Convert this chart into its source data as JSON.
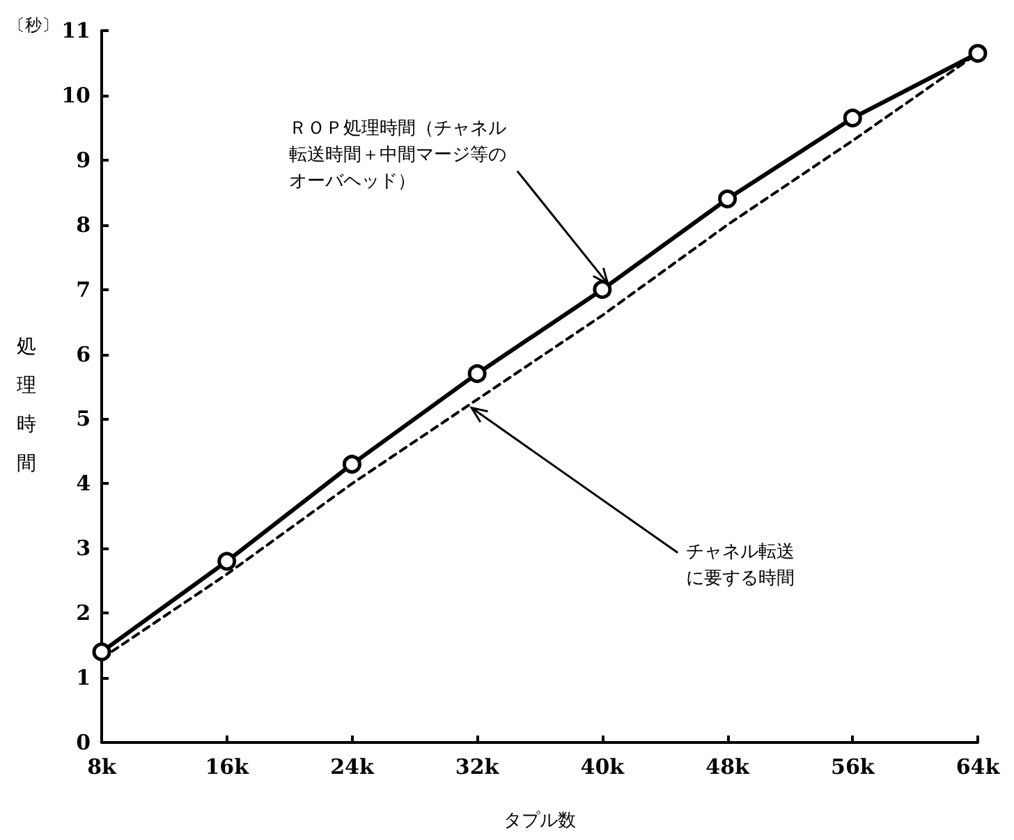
{
  "chart_data": {
    "type": "line",
    "categories": [
      "8k",
      "16k",
      "24k",
      "32k",
      "40k",
      "48k",
      "56k",
      "64k"
    ],
    "series": [
      {
        "color": "#000000",
        "marker": "circle",
        "line_style": "solid",
        "values": [
          1.4,
          2.8,
          4.3,
          5.7,
          7.0,
          8.4,
          9.65,
          10.65
        ]
      },
      {
        "color": "#000000",
        "marker": "none",
        "line_style": "dashed",
        "values": [
          1.3,
          2.6,
          4.0,
          5.3,
          6.6,
          8.0,
          9.3,
          10.65
        ]
      }
    ],
    "xlabel": "タプル数",
    "ylabel": "処理時間",
    "ylim": [
      0,
      11
    ],
    "yticks": [
      0,
      1,
      2,
      3,
      4,
      5,
      6,
      7,
      8,
      9,
      10,
      11
    ],
    "grid": false,
    "annotations": [
      "〔秒〕",
      {
        "text": "ＲＯＰ処理時間（チャネル転送時間＋中間マージ等のオーバヘッド）",
        "x": "40k",
        "y": 7.0
      },
      {
        "text": "チャネル転送に要する時間",
        "x": "32k",
        "y": 5.3
      }
    ]
  }
}
